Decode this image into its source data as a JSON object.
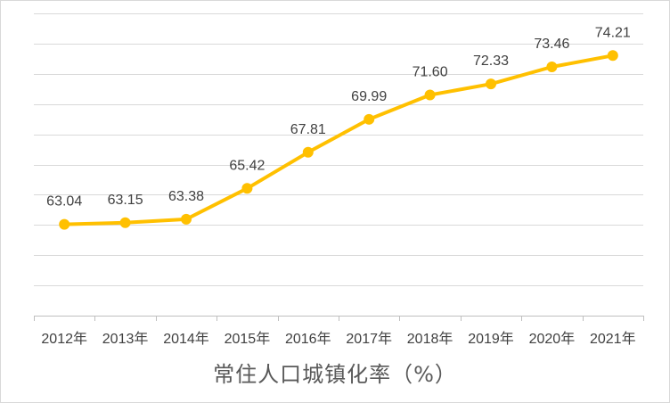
{
  "chart_data": {
    "type": "line",
    "categories": [
      "2012年",
      "2013年",
      "2014年",
      "2015年",
      "2016年",
      "2017年",
      "2018年",
      "2019年",
      "2020年",
      "2021年"
    ],
    "series": [
      {
        "values": [
          63.04,
          63.15,
          63.38,
          65.42,
          67.81,
          69.99,
          71.6,
          72.33,
          73.46,
          74.21
        ]
      }
    ],
    "data_labels": [
      "63.04",
      "63.15",
      "63.38",
      "65.42",
      "67.81",
      "69.99",
      "71.60",
      "72.33",
      "73.46",
      "74.21"
    ],
    "xlabel": "常住人口城镇化率（%）",
    "ylabel": "",
    "ylim": [
      57,
      77
    ],
    "grid": true,
    "legend": "none",
    "colors": {
      "line": "#FFC000",
      "grid": "#d9d9d9",
      "axis": "#bfbfbf",
      "text": "#404040"
    }
  }
}
